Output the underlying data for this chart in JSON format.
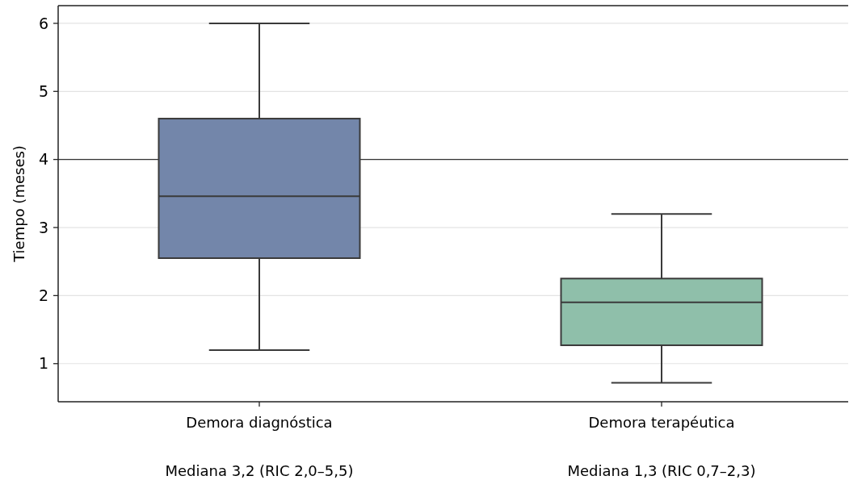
{
  "chart_data": {
    "type": "box",
    "ylabel": "Tiempo (meses)",
    "categories": [
      "Demora diagnóstica",
      "Demora terapéutica"
    ],
    "colors": [
      "#7386aa",
      "#8fbfaa"
    ],
    "boxes": [
      {
        "low": 1.2,
        "q1": 2.55,
        "median": 3.46,
        "q3": 4.6,
        "high": 6.0
      },
      {
        "low": 0.72,
        "q1": 1.27,
        "median": 1.9,
        "q3": 2.25,
        "high": 3.2
      }
    ],
    "ylim": [
      0.44,
      6.26
    ],
    "yticks": [
      1,
      2,
      3,
      4,
      5,
      6
    ],
    "grid": "y",
    "ref_lines": [
      {
        "axis": "y",
        "value": 4,
        "color": "#333333"
      }
    ],
    "annotations": [
      "Mediana 3,2 (RIC 2,0–5,5)",
      "Mediana 1,3 (RIC 0,7–2,3)"
    ]
  }
}
